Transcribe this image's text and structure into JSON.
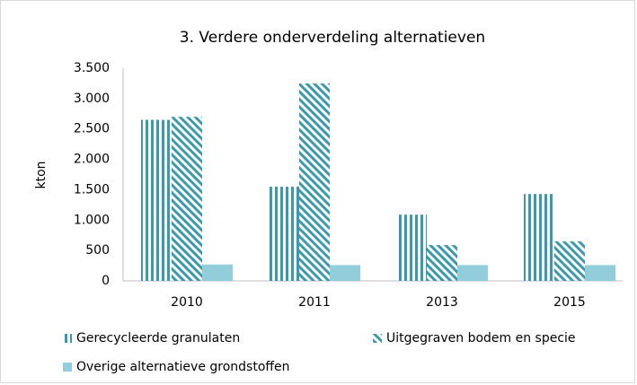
{
  "chart_data": {
    "type": "bar",
    "title": "3. Verdere onderverdeling alternatieven",
    "y_label": "kton",
    "categories": [
      "2010",
      "2011",
      "2013",
      "2015"
    ],
    "series": [
      {
        "name": "Gerecycleerde granulaten",
        "color": "#3a9aab",
        "pattern": "vertical",
        "values": [
          2650,
          1550,
          1090,
          1430
        ]
      },
      {
        "name": "Uitgegraven bodem en specie",
        "color": "#3a9aab",
        "pattern": "diagonal",
        "values": [
          2700,
          3250,
          590,
          650
        ]
      },
      {
        "name": "Overige alternatieve grondstoffen",
        "color": "#92cddc",
        "pattern": "solid",
        "values": [
          270,
          260,
          260,
          260
        ]
      }
    ],
    "ylim": [
      0,
      3500
    ],
    "yticks": [
      0,
      500,
      {
        "value": 1000,
        "label": "1.000"
      },
      {
        "value": 1500,
        "label": "1.500"
      },
      {
        "value": 2000,
        "label": "2.000"
      },
      {
        "value": 2500,
        "label": "2.500"
      },
      {
        "value": 3000,
        "label": "3.000"
      },
      {
        "value": 3500,
        "label": "3.500"
      }
    ],
    "grid": false,
    "legend": "bottom"
  }
}
